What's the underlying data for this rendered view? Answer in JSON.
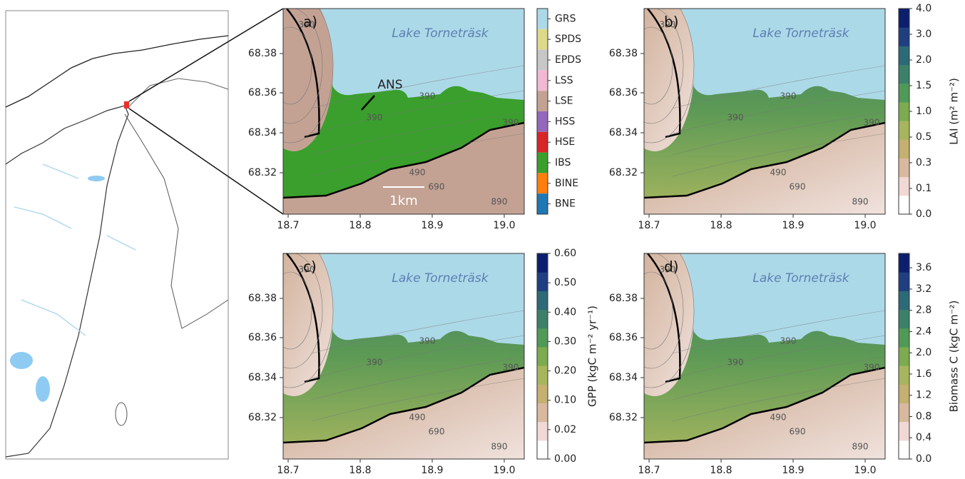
{
  "panels": [
    {
      "label": "a)",
      "lake_label": "Lake Torneträsk",
      "annotation": "ANS",
      "scale_label": "1km"
    },
    {
      "label": "b)",
      "lake_label": "Lake Torneträsk"
    },
    {
      "label": "c)",
      "lake_label": "Lake Torneträsk"
    },
    {
      "label": "d)",
      "lake_label": "Lake Torneträsk"
    }
  ],
  "contour_labels": [
    "390",
    "390",
    "390",
    "390",
    "490",
    "690",
    "890"
  ],
  "x_ticks": [
    "18.7",
    "18.8",
    "18.9",
    "19.0"
  ],
  "y_ticks": [
    "68.38",
    "68.36",
    "68.34",
    "68.32"
  ],
  "legend": [
    {
      "code": "GRS",
      "color": "#acd9e8"
    },
    {
      "code": "SPDS",
      "color": "#dcd98a"
    },
    {
      "code": "EPDS",
      "color": "#c7c7c7"
    },
    {
      "code": "LSS",
      "color": "#f2b8d2"
    },
    {
      "code": "LSE",
      "color": "#c3a294"
    },
    {
      "code": "HSS",
      "color": "#9467bd"
    },
    {
      "code": "HSE",
      "color": "#d62728"
    },
    {
      "code": "IBS",
      "color": "#3a9f2c"
    },
    {
      "code": "BINE",
      "color": "#ff7f0e"
    },
    {
      "code": "BNE",
      "color": "#1f77b4"
    }
  ],
  "colorbars": [
    {
      "label": "LAI (m² m⁻²)",
      "ticks": [
        "0.0",
        "0.1",
        "0.3",
        "0.5",
        "1.0",
        "1.5",
        "2.0",
        "3.0",
        "4.0"
      ]
    },
    {
      "label": "GPP (kgC m⁻² yr⁻¹)",
      "ticks": [
        "0.00",
        "0.02",
        "0.10",
        "0.20",
        "0.30",
        "0.40",
        "0.50",
        "0.60"
      ]
    },
    {
      "label": "Biomass C (kgC m⁻²)",
      "ticks": [
        "0.0",
        "0.4",
        "0.8",
        "1.2",
        "1.6",
        "2.0",
        "2.4",
        "2.8",
        "3.2",
        "3.6"
      ]
    }
  ]
}
